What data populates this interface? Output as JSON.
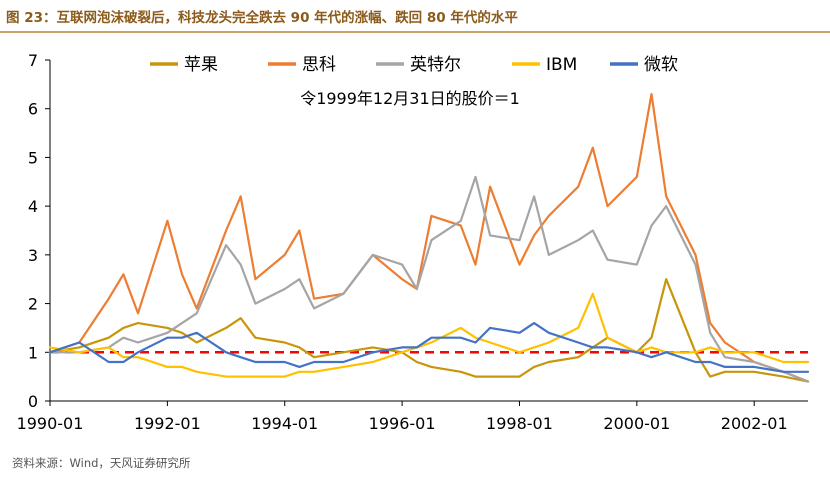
{
  "figure": {
    "title": "图 23：互联网泡沫破裂后，科技龙头完全跌去 90 年代的涨幅、跌回 80 年代的水平",
    "source": "资料来源：Wind，天风证券研究所"
  },
  "chart_data": {
    "type": "line",
    "annotation": "令1999年12月31日的股价＝1",
    "xlabel": "",
    "ylabel": "",
    "ylim": [
      0,
      7
    ],
    "yticks": [
      0,
      1,
      2,
      3,
      4,
      5,
      6,
      7
    ],
    "xlim": [
      "1990-01",
      "2002-12"
    ],
    "xticks": [
      "1990-01",
      "1992-01",
      "1994-01",
      "1996-01",
      "1998-01",
      "2000-01",
      "2002-01"
    ],
    "grid": false,
    "legend": "top",
    "reference_line": {
      "y": 1,
      "color": "#ff0000",
      "style": "dashed"
    },
    "x": [
      "1990-01",
      "1990-07",
      "1991-01",
      "1991-04",
      "1991-07",
      "1992-01",
      "1992-04",
      "1992-07",
      "1993-01",
      "1993-04",
      "1993-07",
      "1994-01",
      "1994-04",
      "1994-07",
      "1995-01",
      "1995-07",
      "1996-01",
      "1996-04",
      "1996-07",
      "1997-01",
      "1997-04",
      "1997-07",
      "1998-01",
      "1998-04",
      "1998-07",
      "1999-01",
      "1999-04",
      "1999-07",
      "2000-01",
      "2000-04",
      "2000-07",
      "2001-01",
      "2001-04",
      "2001-07",
      "2002-01",
      "2002-07",
      "2002-12"
    ],
    "series": [
      {
        "name": "苹果",
        "color": "#c8960c",
        "values": [
          1.0,
          1.1,
          1.3,
          1.5,
          1.6,
          1.5,
          1.4,
          1.2,
          1.5,
          1.7,
          1.3,
          1.2,
          1.1,
          0.9,
          1.0,
          1.1,
          1.0,
          0.8,
          0.7,
          0.6,
          0.5,
          0.5,
          0.5,
          0.7,
          0.8,
          0.9,
          1.1,
          1.3,
          1.0,
          1.3,
          2.5,
          1.0,
          0.5,
          0.6,
          0.6,
          0.5,
          0.4
        ]
      },
      {
        "name": "思科",
        "color": "#ed7d31",
        "values": [
          1.0,
          1.2,
          2.1,
          2.6,
          1.8,
          3.7,
          2.6,
          1.9,
          3.5,
          4.2,
          2.5,
          3.0,
          3.5,
          2.1,
          2.2,
          3.0,
          2.5,
          2.3,
          3.8,
          3.6,
          2.8,
          4.4,
          2.8,
          3.4,
          3.8,
          4.4,
          5.2,
          4.0,
          4.6,
          6.3,
          4.2,
          3.0,
          1.6,
          1.2,
          0.8,
          0.6,
          0.4
        ]
      },
      {
        "name": "英特尔",
        "color": "#a5a5a5",
        "values": [
          1.0,
          1.0,
          1.1,
          1.3,
          1.2,
          1.4,
          1.6,
          1.8,
          3.2,
          2.8,
          2.0,
          2.3,
          2.5,
          1.9,
          2.2,
          3.0,
          2.8,
          2.3,
          3.3,
          3.7,
          4.6,
          3.4,
          3.3,
          4.2,
          3.0,
          3.3,
          3.5,
          2.9,
          2.8,
          3.6,
          4.0,
          2.8,
          1.4,
          0.9,
          0.8,
          0.6,
          0.4
        ]
      },
      {
        "name": "IBM",
        "color": "#ffc000",
        "values": [
          1.1,
          1.0,
          1.1,
          0.9,
          0.9,
          0.7,
          0.7,
          0.6,
          0.5,
          0.5,
          0.5,
          0.5,
          0.6,
          0.6,
          0.7,
          0.8,
          1.0,
          1.1,
          1.2,
          1.5,
          1.3,
          1.2,
          1.0,
          1.1,
          1.2,
          1.5,
          2.2,
          1.3,
          1.0,
          1.1,
          1.0,
          1.0,
          1.1,
          1.0,
          1.0,
          0.8,
          0.8
        ]
      },
      {
        "name": "微软",
        "color": "#4472c4",
        "values": [
          1.0,
          1.2,
          0.8,
          0.8,
          1.0,
          1.3,
          1.3,
          1.4,
          1.0,
          0.9,
          0.8,
          0.8,
          0.7,
          0.8,
          0.8,
          1.0,
          1.1,
          1.1,
          1.3,
          1.3,
          1.2,
          1.5,
          1.4,
          1.6,
          1.4,
          1.2,
          1.1,
          1.1,
          1.0,
          0.9,
          1.0,
          0.8,
          0.8,
          0.7,
          0.7,
          0.6,
          0.6
        ]
      }
    ]
  }
}
